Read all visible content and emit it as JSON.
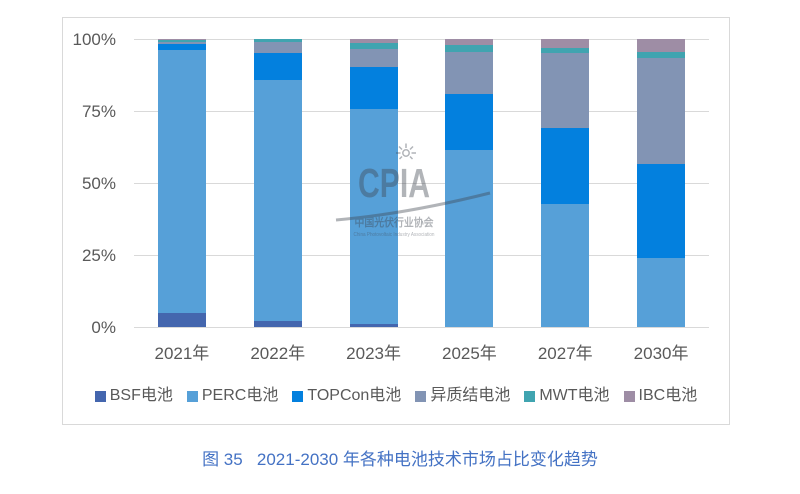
{
  "caption": "图 35   2021-2030 年各种电池技术市场占比变化趋势",
  "watermark": {
    "acronym": "CPIA",
    "cn": "中国光伏行业协会",
    "en": "China Photovoltaic Industry Association"
  },
  "chart_data": {
    "type": "bar",
    "stacked": true,
    "unit": "%",
    "title": "",
    "xlabel": "",
    "ylabel": "",
    "ylim": [
      0,
      100
    ],
    "grid": true,
    "legend_position": "bottom",
    "categories": [
      "2021年",
      "2022年",
      "2023年",
      "2025年",
      "2027年",
      "2030年"
    ],
    "yticks": [
      "0%",
      "25%",
      "50%",
      "75%",
      "100%"
    ],
    "series": [
      {
        "name": "BSF电池",
        "color": "#4466AE",
        "values": [
          5,
          2,
          1,
          0,
          0,
          0
        ]
      },
      {
        "name": "PERC电池",
        "color": "#56A0D8",
        "values": [
          91.2,
          83.8,
          74.6,
          61.5,
          42.7,
          24
        ]
      },
      {
        "name": "TOPCon电池",
        "color": "#0380DE",
        "values": [
          2,
          9.3,
          14.6,
          19.5,
          26.3,
          32.5
        ]
      },
      {
        "name": "异质结电池",
        "color": "#8294B4",
        "values": [
          0.6,
          3.9,
          6.2,
          14.5,
          26,
          37
        ]
      },
      {
        "name": "MWT电池",
        "color": "#40A4B0",
        "values": [
          0.8,
          1.0,
          2.1,
          2.5,
          2,
          2
        ]
      },
      {
        "name": "IBC电池",
        "color": "#9E8DA5",
        "values": [
          0.4,
          0,
          1.5,
          2,
          3,
          4.5
        ]
      }
    ]
  }
}
